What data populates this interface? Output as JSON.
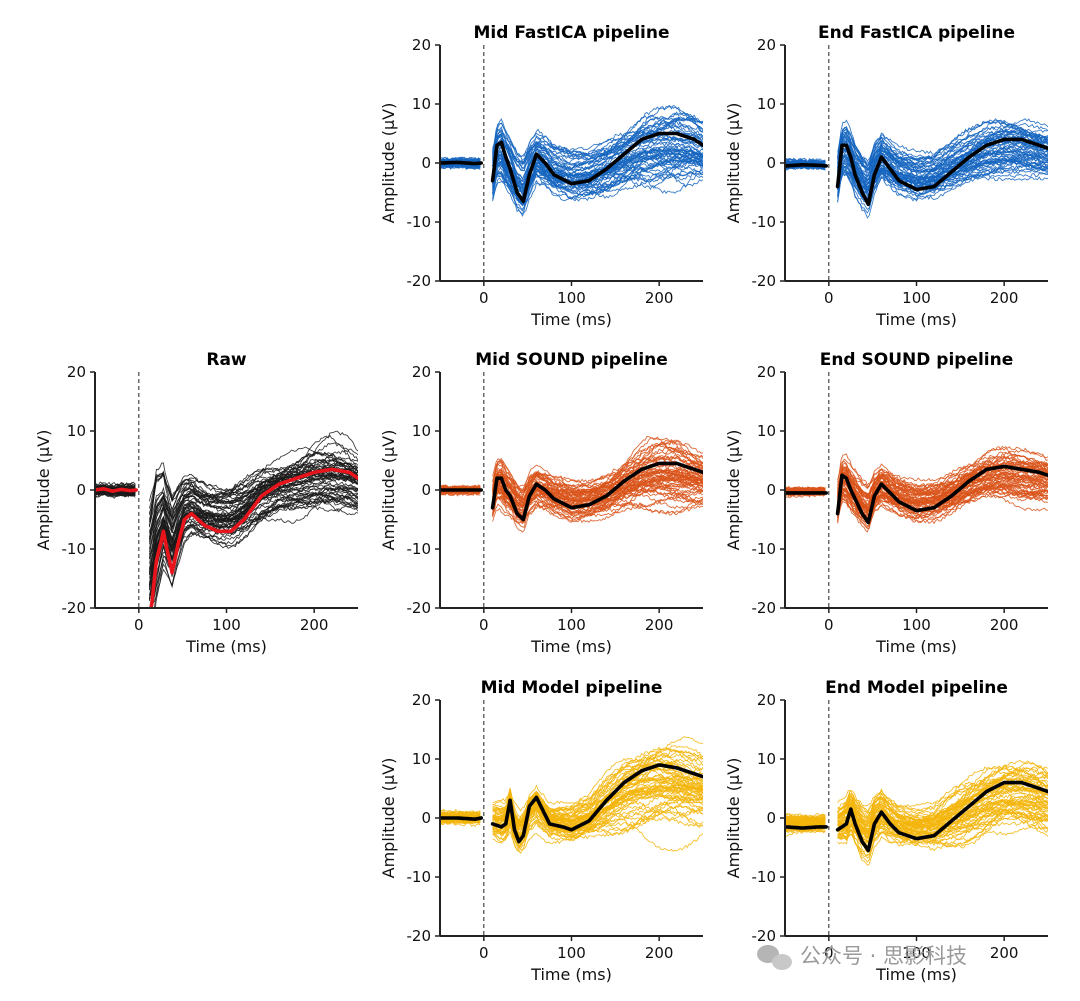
{
  "figure": {
    "watermark": {
      "text": "公众号 · 思影科技",
      "icon": "wechat-bubble-icon"
    }
  },
  "chart_data": [
    {
      "id": "raw",
      "type": "line",
      "title": "Raw",
      "xlabel": "Time (ms)",
      "ylabel": "Amplitude (µV)",
      "xlim": [
        -50,
        250
      ],
      "ylim": [
        -20,
        20
      ],
      "xticks": [
        0,
        100,
        200
      ],
      "yticks": [
        -20,
        -10,
        0,
        10,
        20
      ],
      "stimulus_marker_ms": 0,
      "gap_ms": [
        -3,
        12
      ],
      "trace_color": "#1a1a1a",
      "mean_color": "#e8141c",
      "n_channels": 60,
      "mean_trace": {
        "x": [
          -50,
          -40,
          -30,
          -20,
          -10,
          -3,
          12,
          15,
          20,
          25,
          28,
          32,
          38,
          45,
          52,
          60,
          75,
          90,
          105,
          120,
          140,
          160,
          180,
          200,
          220,
          240,
          250
        ],
        "y": [
          0,
          0.2,
          -0.2,
          0.1,
          -0.1,
          0,
          -22,
          -19,
          -12,
          -9,
          -7,
          -10,
          -14,
          -9,
          -5,
          -4,
          -6,
          -7,
          -7,
          -5,
          -1,
          1,
          2,
          3,
          3.5,
          3,
          2
        ]
      },
      "spread": {
        "x": [
          -50,
          -3,
          12,
          20,
          30,
          50,
          80,
          120,
          160,
          190,
          220,
          250
        ],
        "y": [
          0.8,
          0.8,
          7,
          8,
          6,
          5,
          4,
          3.5,
          3.5,
          5,
          5,
          4
        ]
      }
    },
    {
      "id": "mid-fastica",
      "type": "line",
      "title": "Mid FastICA pipeline",
      "xlabel": "Time (ms)",
      "ylabel": "Amplitude (µV)",
      "xlim": [
        -50,
        250
      ],
      "ylim": [
        -20,
        20
      ],
      "xticks": [
        0,
        100,
        200
      ],
      "yticks": [
        -20,
        -10,
        0,
        10,
        20
      ],
      "stimulus_marker_ms": 0,
      "gap_ms": [
        -3,
        10
      ],
      "trace_color": "#1565c0",
      "mean_color": "#000000",
      "n_channels": 60,
      "mean_trace": {
        "x": [
          -50,
          -30,
          -10,
          -3,
          10,
          15,
          20,
          25,
          30,
          38,
          45,
          52,
          60,
          70,
          80,
          100,
          120,
          140,
          160,
          180,
          200,
          220,
          240,
          250
        ],
        "y": [
          0,
          0.1,
          -0.1,
          0,
          -3,
          3,
          3.5,
          1,
          -1,
          -5,
          -6.5,
          -2,
          1.5,
          0,
          -2,
          -3.5,
          -3,
          -1,
          1.5,
          4,
          5,
          5,
          4,
          3
        ]
      },
      "spread": {
        "x": [
          -50,
          -3,
          10,
          20,
          40,
          80,
          120,
          160,
          190,
          220,
          250
        ],
        "y": [
          0.6,
          0.6,
          3.5,
          4,
          3.5,
          3,
          3,
          4,
          5,
          5,
          4
        ]
      }
    },
    {
      "id": "end-fastica",
      "type": "line",
      "title": "End FastICA pipeline",
      "xlabel": "Time (ms)",
      "ylabel": "Amplitude (µV)",
      "xlim": [
        -50,
        250
      ],
      "ylim": [
        -20,
        20
      ],
      "xticks": [
        0,
        100,
        200
      ],
      "yticks": [
        -20,
        -10,
        0,
        10,
        20
      ],
      "stimulus_marker_ms": 0,
      "gap_ms": [
        -3,
        10
      ],
      "trace_color": "#1565c0",
      "mean_color": "#000000",
      "n_channels": 60,
      "mean_trace": {
        "x": [
          -50,
          -30,
          -10,
          -3,
          10,
          15,
          20,
          25,
          30,
          38,
          45,
          52,
          60,
          70,
          80,
          100,
          120,
          140,
          160,
          180,
          200,
          220,
          240,
          250
        ],
        "y": [
          -0.5,
          -0.3,
          -0.4,
          -0.5,
          -4,
          3,
          3,
          1,
          -2,
          -5,
          -7,
          -2,
          1,
          -1,
          -3,
          -4.5,
          -4,
          -1.5,
          1,
          3,
          4,
          4,
          3,
          2.5
        ]
      },
      "spread": {
        "x": [
          -50,
          -3,
          10,
          20,
          40,
          80,
          120,
          160,
          190,
          220,
          250
        ],
        "y": [
          0.6,
          0.6,
          3.5,
          4,
          3.5,
          3,
          3,
          3.5,
          4,
          4,
          3.5
        ]
      }
    },
    {
      "id": "mid-sound",
      "type": "line",
      "title": "Mid SOUND pipeline",
      "xlabel": "Time (ms)",
      "ylabel": "Amplitude (µV)",
      "xlim": [
        -50,
        250
      ],
      "ylim": [
        -20,
        20
      ],
      "xticks": [
        0,
        100,
        200
      ],
      "yticks": [
        -20,
        -10,
        0,
        10,
        20
      ],
      "stimulus_marker_ms": 0,
      "gap_ms": [
        -3,
        10
      ],
      "trace_color": "#d9541a",
      "mean_color": "#000000",
      "n_channels": 60,
      "mean_trace": {
        "x": [
          -50,
          -30,
          -10,
          -3,
          10,
          15,
          20,
          25,
          30,
          38,
          45,
          52,
          60,
          70,
          80,
          100,
          120,
          140,
          160,
          180,
          200,
          220,
          240,
          250
        ],
        "y": [
          0,
          0,
          0,
          0,
          -3,
          2,
          2,
          0,
          -1,
          -4,
          -5,
          -1,
          1,
          0,
          -1.5,
          -3,
          -2.5,
          -1,
          1.5,
          3.5,
          4.5,
          4.5,
          3.5,
          3
        ]
      },
      "spread": {
        "x": [
          -50,
          -3,
          10,
          20,
          40,
          80,
          120,
          160,
          190,
          220,
          250
        ],
        "y": [
          0.5,
          0.5,
          3,
          3.5,
          3,
          2.5,
          2.5,
          3.5,
          4.5,
          4.5,
          3.5
        ]
      }
    },
    {
      "id": "end-sound",
      "type": "line",
      "title": "End SOUND pipeline",
      "xlabel": "Time (ms)",
      "ylabel": "Amplitude (µV)",
      "xlim": [
        -50,
        250
      ],
      "ylim": [
        -20,
        20
      ],
      "xticks": [
        0,
        100,
        200
      ],
      "yticks": [
        -20,
        -10,
        0,
        10,
        20
      ],
      "stimulus_marker_ms": 0,
      "gap_ms": [
        -3,
        10
      ],
      "trace_color": "#d9541a",
      "mean_color": "#000000",
      "n_channels": 60,
      "mean_trace": {
        "x": [
          -50,
          -30,
          -10,
          -3,
          10,
          15,
          20,
          25,
          30,
          38,
          45,
          52,
          60,
          70,
          80,
          100,
          120,
          140,
          160,
          180,
          200,
          220,
          240,
          250
        ],
        "y": [
          -0.5,
          -0.5,
          -0.5,
          -0.5,
          -4,
          2.5,
          2,
          0,
          -1.5,
          -4,
          -5.5,
          -1,
          1,
          -0.5,
          -2,
          -3.5,
          -3,
          -1,
          1.5,
          3.5,
          4,
          3.5,
          3,
          2.5
        ]
      },
      "spread": {
        "x": [
          -50,
          -3,
          10,
          20,
          40,
          80,
          120,
          160,
          190,
          220,
          250
        ],
        "y": [
          0.5,
          0.5,
          3,
          3.5,
          3,
          2.5,
          2.5,
          3,
          3.5,
          3.5,
          3
        ]
      }
    },
    {
      "id": "mid-model",
      "type": "line",
      "title": "Mid Model pipeline",
      "xlabel": "Time (ms)",
      "ylabel": "Amplitude (µV)",
      "xlim": [
        -50,
        250
      ],
      "ylim": [
        -20,
        20
      ],
      "xticks": [
        0,
        100,
        200
      ],
      "yticks": [
        -20,
        -10,
        0,
        10,
        20
      ],
      "stimulus_marker_ms": 0,
      "gap_ms": [
        -3,
        10
      ],
      "trace_color": "#f3b50a",
      "mean_color": "#000000",
      "n_channels": 60,
      "mean_trace": {
        "x": [
          -50,
          -30,
          -10,
          -3,
          10,
          20,
          25,
          30,
          35,
          40,
          45,
          52,
          60,
          65,
          75,
          90,
          100,
          120,
          140,
          160,
          180,
          200,
          220,
          240,
          250
        ],
        "y": [
          0,
          0,
          -0.2,
          0,
          -1,
          -1.5,
          -1,
          3,
          -2,
          -4,
          -3,
          2,
          3.5,
          2,
          -1,
          -1.5,
          -2,
          -0.5,
          3,
          6,
          8,
          9,
          8.5,
          7.5,
          7
        ]
      },
      "spread": {
        "x": [
          -50,
          -3,
          10,
          20,
          40,
          80,
          120,
          160,
          190,
          220,
          250
        ],
        "y": [
          0.8,
          0.8,
          2.5,
          3,
          3,
          2.5,
          3,
          5.5,
          6.5,
          6,
          5
        ]
      }
    },
    {
      "id": "end-model",
      "type": "line",
      "title": "End Model pipeline",
      "xlabel": "Time (ms)",
      "ylabel": "Amplitude (µV)",
      "xlim": [
        -50,
        250
      ],
      "ylim": [
        -20,
        20
      ],
      "xticks": [
        0,
        100,
        200
      ],
      "yticks": [
        -20,
        -10,
        0,
        10,
        20
      ],
      "stimulus_marker_ms": 0,
      "gap_ms": [
        -3,
        10
      ],
      "trace_color": "#f3b50a",
      "mean_color": "#000000",
      "n_channels": 60,
      "mean_trace": {
        "x": [
          -50,
          -30,
          -10,
          -3,
          10,
          15,
          20,
          25,
          30,
          38,
          45,
          52,
          60,
          70,
          80,
          100,
          120,
          140,
          160,
          180,
          200,
          220,
          240,
          250
        ],
        "y": [
          -1.5,
          -1.7,
          -1.5,
          -1.5,
          -2,
          -1.5,
          -1,
          1.5,
          -1,
          -4,
          -5.5,
          -1,
          1,
          -1,
          -2.5,
          -3.5,
          -3,
          -0.5,
          2,
          4.5,
          6,
          6,
          5,
          4.5
        ]
      },
      "spread": {
        "x": [
          -50,
          -3,
          10,
          20,
          40,
          80,
          120,
          160,
          190,
          220,
          250
        ],
        "y": [
          1.2,
          1.2,
          2.5,
          3,
          3,
          2.5,
          3,
          4,
          4.5,
          4.5,
          4
        ]
      }
    }
  ]
}
